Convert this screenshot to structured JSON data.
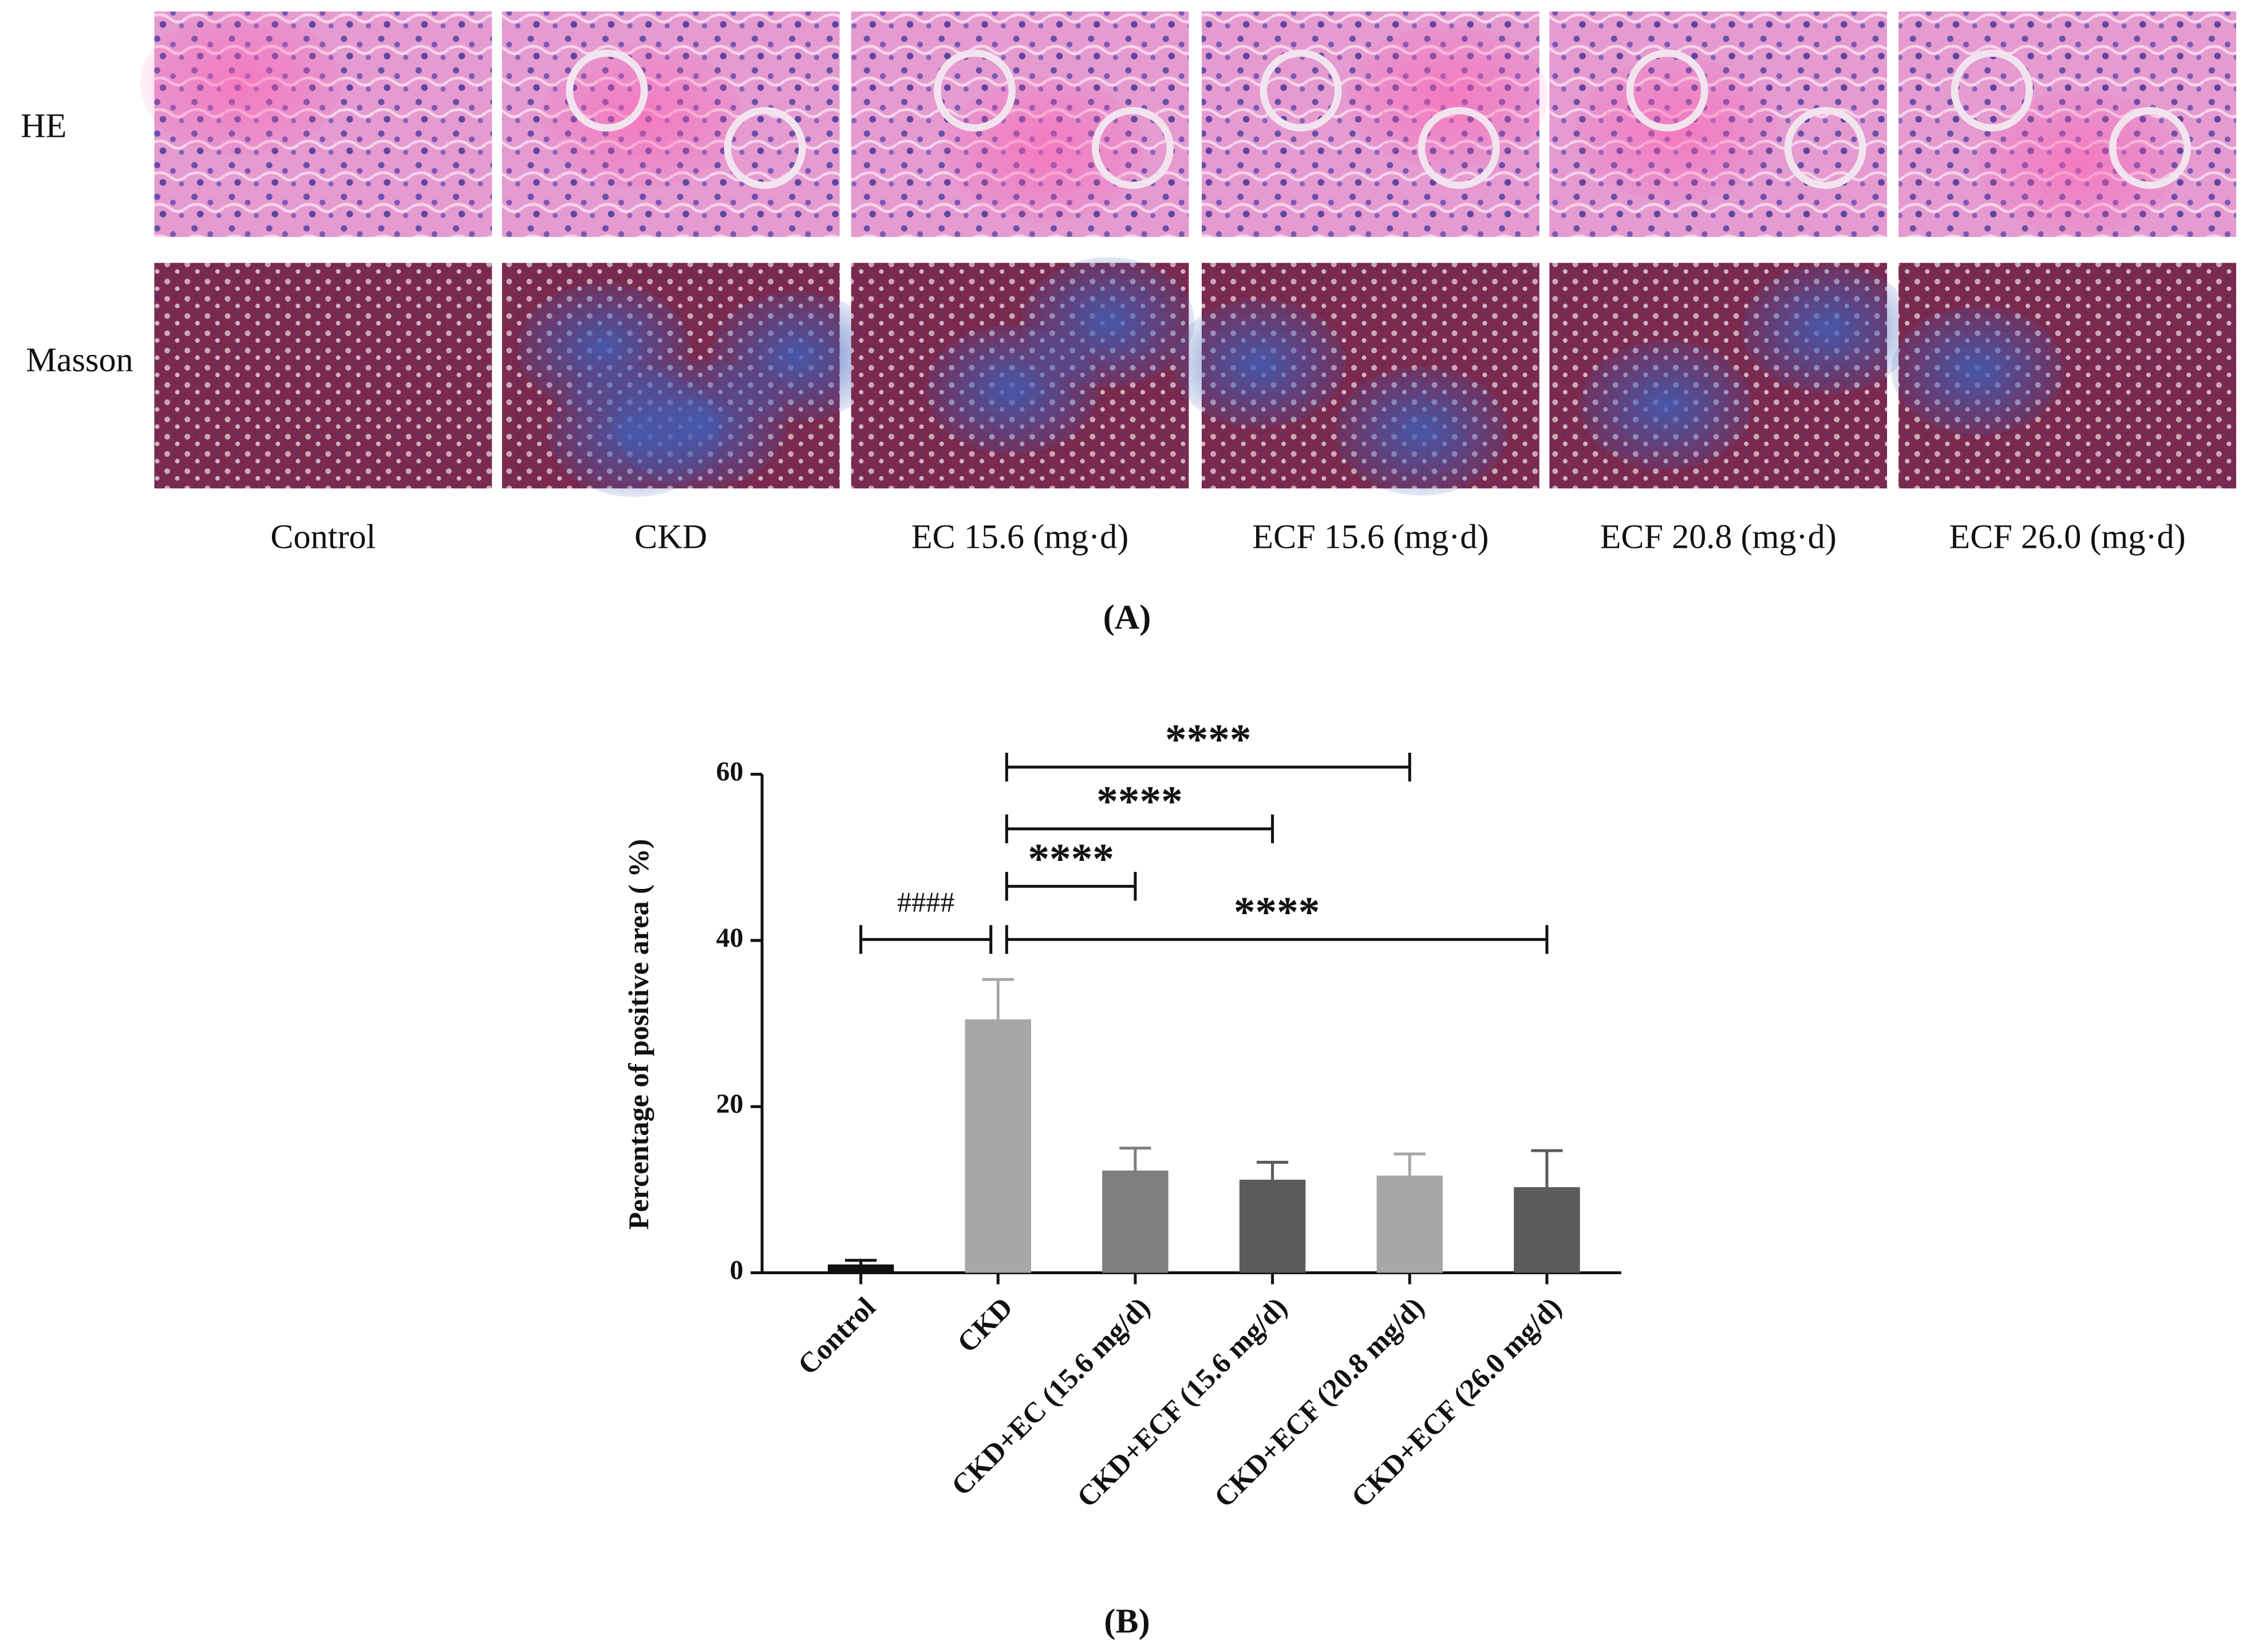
{
  "panel_a": {
    "row_labels": [
      "HE",
      "Masson"
    ],
    "column_labels": [
      "Control",
      "CKD",
      "EC 15.6 (mg·d)",
      "ECF 15.6 (mg·d)",
      "ECF 20.8 (mg·d)",
      "ECF 26.0 (mg·d)"
    ],
    "caption": "(A)"
  },
  "chart_data": {
    "type": "bar",
    "y_label": "Percentage of positive area ( %)",
    "categories": [
      "Control",
      "CKD",
      "CKD+EC (15.6 mg/d)",
      "CKD+ECF (15.6 mg/d)",
      "CKD+ECF (20.8 mg/d)",
      "CKD+ECF (26.0 mg/d)"
    ],
    "values": [
      1,
      30.5,
      12.3,
      11.2,
      11.7,
      10.3
    ],
    "errors": [
      0.5,
      4.8,
      2.7,
      2.1,
      2.6,
      4.4
    ],
    "colors": [
      "#111111",
      "#a7a7aa",
      "#7f7f81",
      "#5b5b5d",
      "#a7a7aa",
      "#5b5b5d"
    ],
    "ylim": [
      0,
      60
    ],
    "yticks": [
      0,
      20,
      40,
      60
    ],
    "annotations": [
      {
        "text": "####",
        "from": "Control",
        "to": "CKD"
      },
      {
        "text": "****",
        "from": "CKD",
        "to": "CKD+EC (15.6 mg/d)"
      },
      {
        "text": "****",
        "from": "CKD",
        "to": "CKD+ECF (15.6 mg/d)"
      },
      {
        "text": "****",
        "from": "CKD",
        "to": "CKD+ECF (20.8 mg/d)"
      },
      {
        "text": "****",
        "from": "CKD",
        "to": "CKD+ECF (26.0 mg/d)"
      }
    ]
  },
  "panel_b_caption": "(B)"
}
